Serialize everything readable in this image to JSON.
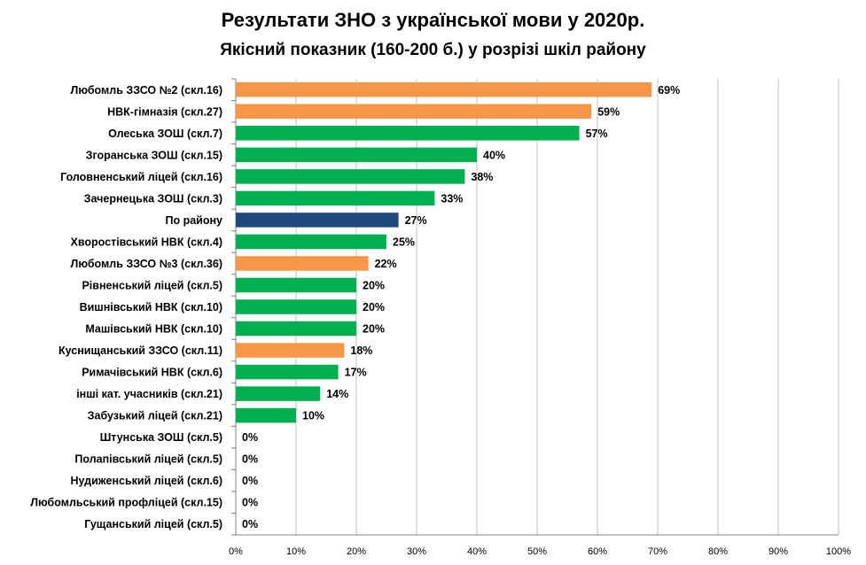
{
  "chart_data": {
    "type": "bar",
    "orientation": "horizontal",
    "title": "Результати  ЗНО з української мови у 2020р.",
    "subtitle": "Якісний показник (160-200  б.) у розрізі шкіл району",
    "xlabel": "",
    "ylabel": "",
    "xlim": [
      0,
      100
    ],
    "x_ticks": [
      "0%",
      "10%",
      "20%",
      "30%",
      "40%",
      "50%",
      "60%",
      "70%",
      "80%",
      "90%",
      "100%"
    ],
    "grid": true,
    "legend": "none",
    "colors": {
      "orange": "#F79646",
      "green": "#00B050",
      "blue": "#1F497D",
      "grid": "#BFBFBF",
      "axis": "#808080"
    },
    "categories": [
      "Любомль ЗЗСО №2 (скл.16)",
      "НВК-гімназія (скл.27)",
      "Олеська ЗОШ (скл.7)",
      "Згоранська ЗОШ (скл.15)",
      "Головненський ліцей (скл.16)",
      "Зачернецька ЗОШ (скл.3)",
      "По району",
      "Хворостівський НВК (скл.4)",
      "Любомль ЗЗСО №3 (скл.36)",
      "Рівненський ліцей (скл.5)",
      "Вишнівський НВК (скл.10)",
      "Машівський НВК (скл.10)",
      "Куснищанський ЗЗСО (скл.11)",
      "Римачівський НВК (скл.6)",
      "інші кат. учасників (скл.21)",
      "Забузький ліцей (скл.21)",
      "Штунська ЗОШ (скл.5)",
      "Полапівський ліцей (скл.5)",
      "Нудиженський ліцей (скл.6)",
      "Любомльський профліцей (скл.15)",
      "Гущанський ліцей (скл.5)"
    ],
    "values": [
      69,
      59,
      57,
      40,
      38,
      33,
      27,
      25,
      22,
      20,
      20,
      20,
      18,
      17,
      14,
      10,
      0,
      0,
      0,
      0,
      0
    ],
    "value_labels": [
      "69%",
      "59%",
      "57%",
      "40%",
      "38%",
      "33%",
      "27%",
      "25%",
      "22%",
      "20%",
      "20%",
      "20%",
      "18%",
      "17%",
      "14%",
      "10%",
      "0%",
      "0%",
      "0%",
      "0%",
      "0%"
    ],
    "bar_colors": [
      "orange",
      "orange",
      "green",
      "green",
      "green",
      "green",
      "blue",
      "green",
      "orange",
      "green",
      "green",
      "green",
      "orange",
      "green",
      "green",
      "green",
      "green",
      "green",
      "green",
      "green",
      "green"
    ]
  }
}
